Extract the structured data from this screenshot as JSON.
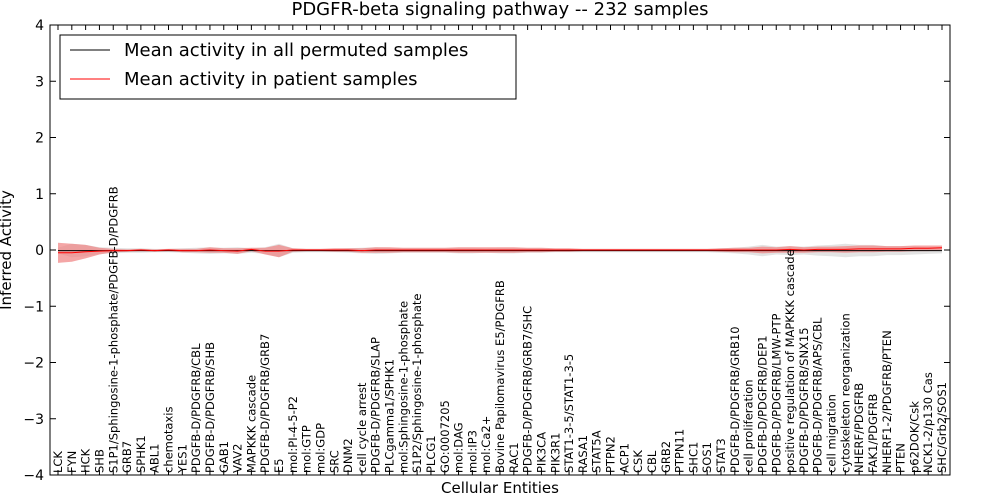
{
  "chart_data": {
    "type": "line",
    "title": "PDGFR-beta signaling pathway -- 232 samples",
    "xlabel": "Cellular Entities",
    "ylabel": "Inferred Activity",
    "ylim": [
      -4,
      4
    ],
    "yticks": [
      "4",
      "3",
      "2",
      "1",
      "0",
      "−1",
      "−2",
      "−3",
      "−4"
    ],
    "grid": false,
    "legend_position": "top-left",
    "categories": [
      "LCK",
      "FYN",
      "HCK",
      "SHB",
      "S1P1/Sphingosine-1-phosphate/PDGFB-D/PDGFRB",
      "GRB7",
      "SPHK1",
      "ABL1",
      "chemotaxis",
      "YES1",
      "PDGFB-D/PDGFRB/CBL",
      "PDGFB-D/PDGFRB/SHB",
      "GAB1",
      "VAV2",
      "MAPKKK cascade",
      "PDGFB-D/PDGFRB/GRB7",
      "E5",
      "mol:PI-4-5-P2",
      "mol:GTP",
      "mol:GDP",
      "SRC",
      "DNM2",
      "cell cycle arrest",
      "PDGFB-D/PDGFRB/SLAP",
      "PLCgamma1/SPHK1",
      "mol:Sphingosine-1-phosphate",
      "S1P2/Sphingosine-1-phosphate",
      "PLCG1",
      "GO:0007205",
      "mol:DAG",
      "mol:IP3",
      "mol:Ca2+",
      "Bovine Papilomavirus E5/PDGFRB",
      "RAC1",
      "PDGFB-D/PDGFRB/GRB7/SHC",
      "PIK3CA",
      "PIK3R1",
      "STAT1-3-5/STAT1-3-5",
      "RASA1",
      "STAT5A",
      "PTPN2",
      "ACP1",
      "CSK",
      "CBL",
      "GRB2",
      "PTPN11",
      "SHC1",
      "SOS1",
      "STAT3",
      "PDGFB-D/PDGFRB/GRB10",
      "cell proliferation",
      "PDGFB-D/PDGFRB/DEP1",
      "PDGFB-D/PDGFRB/LMW-PTP",
      "positive regulation of MAPKKK cascade",
      "PDGFB-D/PDGFRB/SNX15",
      "PDGFB-D/PDGFRB/APS/CBL",
      "cell migration",
      "cytoskeleton reorganization",
      "NHERF/PDGFRB",
      "FAK1/PDGFRB",
      "NHERF1-2/PDGFRB/PTEN",
      "PTEN",
      "p62DOK/Csk",
      "NCK1-2/p130 Cas",
      "SHC/Grb2/SOS1"
    ],
    "series": [
      {
        "name": "Mean activity in all permuted samples",
        "color": "#000000",
        "values": [
          -0.01,
          -0.01,
          -0.01,
          -0.01,
          -0.01,
          -0.01,
          -0.01,
          -0.01,
          -0.01,
          -0.01,
          -0.01,
          -0.01,
          -0.01,
          -0.01,
          -0.01,
          -0.01,
          -0.01,
          -0.01,
          -0.01,
          -0.01,
          -0.01,
          -0.01,
          -0.01,
          -0.01,
          -0.01,
          -0.01,
          -0.01,
          -0.01,
          -0.01,
          -0.01,
          -0.01,
          -0.01,
          -0.01,
          -0.01,
          -0.01,
          -0.01,
          -0.01,
          -0.01,
          -0.01,
          -0.01,
          -0.01,
          -0.01,
          -0.01,
          -0.01,
          -0.01,
          -0.01,
          -0.01,
          -0.01,
          -0.01,
          -0.01,
          -0.01,
          -0.01,
          -0.01,
          -0.01,
          -0.01,
          -0.01,
          -0.01,
          -0.01,
          -0.01,
          -0.01,
          -0.01,
          -0.01,
          -0.01,
          -0.01,
          -0.01
        ],
        "spread": [
          0.05,
          0.12,
          0.1,
          0.06,
          0.05,
          0.04,
          0.04,
          0.03,
          0.03,
          0.04,
          0.05,
          0.06,
          0.05,
          0.06,
          0.04,
          0.06,
          0.12,
          0.04,
          0.03,
          0.03,
          0.03,
          0.04,
          0.05,
          0.06,
          0.05,
          0.04,
          0.04,
          0.04,
          0.04,
          0.05,
          0.05,
          0.04,
          0.05,
          0.05,
          0.04,
          0.04,
          0.03,
          0.03,
          0.03,
          0.03,
          0.03,
          0.03,
          0.03,
          0.03,
          0.03,
          0.03,
          0.03,
          0.03,
          0.04,
          0.05,
          0.07,
          0.1,
          0.07,
          0.08,
          0.07,
          0.09,
          0.1,
          0.12,
          0.1,
          0.1,
          0.08,
          0.08,
          0.07,
          0.06,
          0.05
        ]
      },
      {
        "name": "Mean activity in patient samples",
        "color": "#ff0000",
        "band_color": "#f08080",
        "values": [
          -0.05,
          -0.05,
          -0.03,
          -0.02,
          -0.01,
          -0.01,
          0.0,
          -0.01,
          0.0,
          -0.01,
          -0.01,
          0.0,
          -0.01,
          -0.02,
          0.01,
          -0.02,
          -0.02,
          0.0,
          0.0,
          0.0,
          0.0,
          0.0,
          -0.01,
          0.0,
          0.0,
          0.0,
          0.0,
          0.0,
          0.0,
          0.0,
          0.0,
          0.0,
          0.0,
          0.0,
          0.0,
          0.0,
          0.0,
          0.0,
          0.0,
          0.0,
          0.0,
          0.0,
          0.0,
          0.0,
          0.0,
          0.0,
          0.0,
          0.0,
          0.0,
          0.0,
          0.0,
          0.0,
          0.0,
          0.01,
          0.0,
          0.01,
          0.01,
          0.01,
          0.02,
          0.02,
          0.02,
          0.02,
          0.03,
          0.03,
          0.04
        ],
        "spread": [
          0.18,
          0.16,
          0.12,
          0.06,
          0.03,
          0.02,
          0.02,
          0.02,
          0.02,
          0.03,
          0.03,
          0.05,
          0.04,
          0.05,
          0.03,
          0.06,
          0.11,
          0.03,
          0.02,
          0.02,
          0.03,
          0.03,
          0.04,
          0.05,
          0.05,
          0.04,
          0.04,
          0.04,
          0.04,
          0.05,
          0.05,
          0.05,
          0.05,
          0.05,
          0.04,
          0.04,
          0.03,
          0.03,
          0.02,
          0.02,
          0.02,
          0.02,
          0.02,
          0.02,
          0.02,
          0.02,
          0.02,
          0.02,
          0.03,
          0.04,
          0.04,
          0.06,
          0.05,
          0.06,
          0.05,
          0.05,
          0.05,
          0.06,
          0.06,
          0.06,
          0.05,
          0.05,
          0.05,
          0.05,
          0.04
        ]
      }
    ]
  }
}
